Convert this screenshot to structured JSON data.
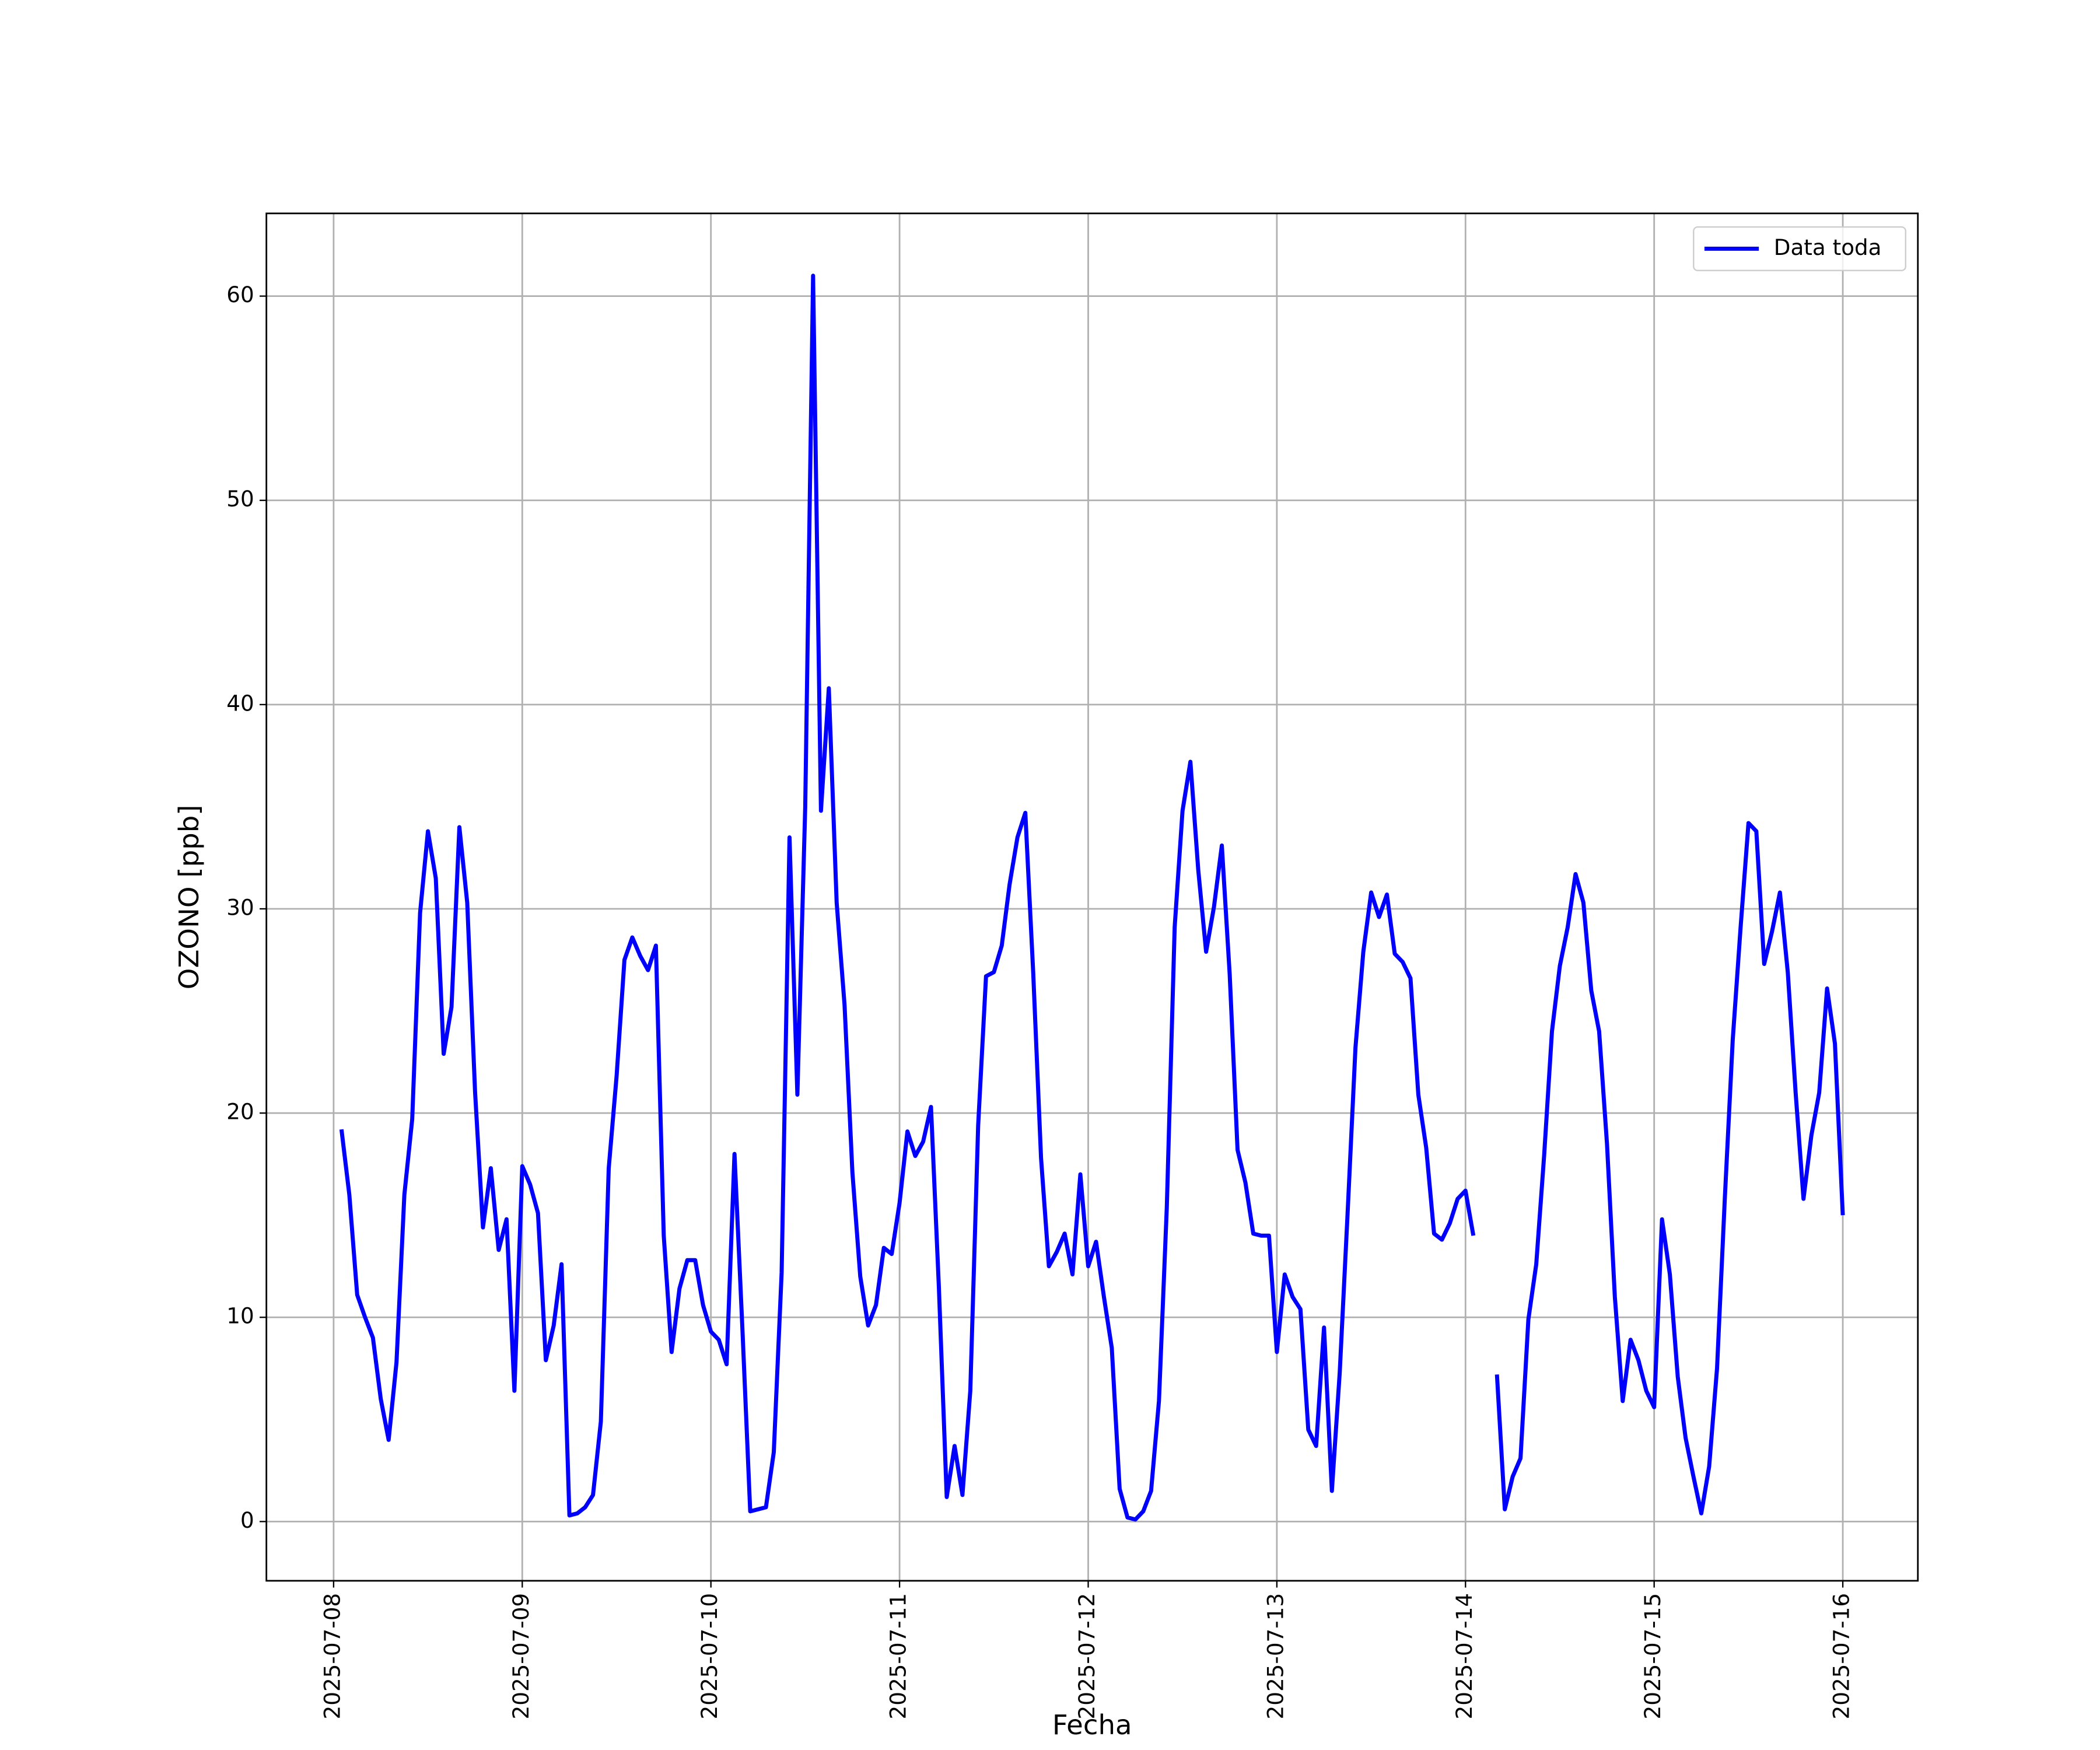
{
  "chart_data": {
    "type": "line",
    "xlabel": "Fecha",
    "ylabel": "OZONO [ppb]",
    "x": [
      "2025-07-08 01:00",
      "2025-07-08 02:00",
      "2025-07-08 03:00",
      "2025-07-08 04:00",
      "2025-07-08 05:00",
      "2025-07-08 06:00",
      "2025-07-08 07:00",
      "2025-07-08 08:00",
      "2025-07-08 09:00",
      "2025-07-08 10:00",
      "2025-07-08 11:00",
      "2025-07-08 12:00",
      "2025-07-08 13:00",
      "2025-07-08 14:00",
      "2025-07-08 15:00",
      "2025-07-08 16:00",
      "2025-07-08 17:00",
      "2025-07-08 18:00",
      "2025-07-08 19:00",
      "2025-07-08 20:00",
      "2025-07-08 21:00",
      "2025-07-08 22:00",
      "2025-07-08 23:00",
      "2025-07-09 00:00",
      "2025-07-09 01:00",
      "2025-07-09 02:00",
      "2025-07-09 03:00",
      "2025-07-09 04:00",
      "2025-07-09 05:00",
      "2025-07-09 06:00",
      "2025-07-09 07:00",
      "2025-07-09 08:00",
      "2025-07-09 09:00",
      "2025-07-09 10:00",
      "2025-07-09 11:00",
      "2025-07-09 12:00",
      "2025-07-09 13:00",
      "2025-07-09 14:00",
      "2025-07-09 15:00",
      "2025-07-09 16:00",
      "2025-07-09 17:00",
      "2025-07-09 18:00",
      "2025-07-09 19:00",
      "2025-07-09 20:00",
      "2025-07-09 21:00",
      "2025-07-09 22:00",
      "2025-07-09 23:00",
      "2025-07-10 00:00",
      "2025-07-10 01:00",
      "2025-07-10 02:00",
      "2025-07-10 03:00",
      "2025-07-10 04:00",
      "2025-07-10 05:00",
      "2025-07-10 06:00",
      "2025-07-10 07:00",
      "2025-07-10 08:00",
      "2025-07-10 09:00",
      "2025-07-10 10:00",
      "2025-07-10 11:00",
      "2025-07-10 12:00",
      "2025-07-10 13:00",
      "2025-07-10 14:00",
      "2025-07-10 15:00",
      "2025-07-10 16:00",
      "2025-07-10 17:00",
      "2025-07-10 18:00",
      "2025-07-10 19:00",
      "2025-07-10 20:00",
      "2025-07-10 21:00",
      "2025-07-10 22:00",
      "2025-07-10 23:00",
      "2025-07-11 00:00",
      "2025-07-11 01:00",
      "2025-07-11 02:00",
      "2025-07-11 03:00",
      "2025-07-11 04:00",
      "2025-07-11 05:00",
      "2025-07-11 06:00",
      "2025-07-11 07:00",
      "2025-07-11 08:00",
      "2025-07-11 09:00",
      "2025-07-11 10:00",
      "2025-07-11 11:00",
      "2025-07-11 12:00",
      "2025-07-11 13:00",
      "2025-07-11 14:00",
      "2025-07-11 15:00",
      "2025-07-11 16:00",
      "2025-07-11 17:00",
      "2025-07-11 18:00",
      "2025-07-11 19:00",
      "2025-07-11 20:00",
      "2025-07-11 21:00",
      "2025-07-11 22:00",
      "2025-07-11 23:00",
      "2025-07-12 00:00",
      "2025-07-12 01:00",
      "2025-07-12 02:00",
      "2025-07-12 03:00",
      "2025-07-12 04:00",
      "2025-07-12 05:00",
      "2025-07-12 06:00",
      "2025-07-12 07:00",
      "2025-07-12 08:00",
      "2025-07-12 09:00",
      "2025-07-12 10:00",
      "2025-07-12 11:00",
      "2025-07-12 12:00",
      "2025-07-12 13:00",
      "2025-07-12 14:00",
      "2025-07-12 15:00",
      "2025-07-12 16:00",
      "2025-07-12 17:00",
      "2025-07-12 18:00",
      "2025-07-12 19:00",
      "2025-07-12 20:00",
      "2025-07-12 21:00",
      "2025-07-12 22:00",
      "2025-07-12 23:00",
      "2025-07-13 00:00",
      "2025-07-13 01:00",
      "2025-07-13 02:00",
      "2025-07-13 03:00",
      "2025-07-13 04:00",
      "2025-07-13 05:00",
      "2025-07-13 06:00",
      "2025-07-13 07:00",
      "2025-07-13 08:00",
      "2025-07-13 09:00",
      "2025-07-13 10:00",
      "2025-07-13 11:00",
      "2025-07-13 12:00",
      "2025-07-13 13:00",
      "2025-07-13 14:00",
      "2025-07-13 15:00",
      "2025-07-13 16:00",
      "2025-07-13 17:00",
      "2025-07-13 18:00",
      "2025-07-13 19:00",
      "2025-07-13 20:00",
      "2025-07-13 21:00",
      "2025-07-13 22:00",
      "2025-07-13 23:00",
      "2025-07-14 00:00",
      "2025-07-14 01:00",
      "2025-07-14 02:00",
      "2025-07-14 03:00",
      "2025-07-14 04:00",
      "2025-07-14 05:00",
      "2025-07-14 06:00",
      "2025-07-14 07:00",
      "2025-07-14 08:00",
      "2025-07-14 09:00",
      "2025-07-14 10:00",
      "2025-07-14 11:00",
      "2025-07-14 12:00",
      "2025-07-14 13:00",
      "2025-07-14 14:00",
      "2025-07-14 15:00",
      "2025-07-14 16:00",
      "2025-07-14 17:00",
      "2025-07-14 18:00",
      "2025-07-14 19:00",
      "2025-07-14 20:00",
      "2025-07-14 21:00",
      "2025-07-14 22:00",
      "2025-07-14 23:00",
      "2025-07-15 00:00",
      "2025-07-15 01:00",
      "2025-07-15 02:00",
      "2025-07-15 03:00",
      "2025-07-15 04:00",
      "2025-07-15 05:00",
      "2025-07-15 06:00",
      "2025-07-15 07:00",
      "2025-07-15 08:00",
      "2025-07-15 09:00",
      "2025-07-15 10:00",
      "2025-07-15 11:00",
      "2025-07-15 12:00",
      "2025-07-15 13:00",
      "2025-07-15 14:00",
      "2025-07-15 15:00",
      "2025-07-15 16:00",
      "2025-07-15 17:00",
      "2025-07-15 18:00",
      "2025-07-15 19:00",
      "2025-07-15 20:00",
      "2025-07-15 21:00",
      "2025-07-15 22:00",
      "2025-07-15 23:00",
      "2025-07-16 00:00"
    ],
    "series": [
      {
        "name": "Data toda",
        "color": "#0000ff",
        "values": [
          19.2,
          16,
          11.1,
          10,
          9,
          6,
          4,
          7.8,
          16,
          19.7,
          29.8,
          33.8,
          31.5,
          22.9,
          25.2,
          34,
          30.3,
          21,
          14.4,
          17.3,
          13.3,
          14.8,
          6.4,
          17.4,
          16.5,
          15.1,
          7.9,
          9.6,
          12.6,
          0.3,
          0.4,
          0.7,
          1.3,
          4.9,
          17.3,
          21.8,
          27.5,
          28.6,
          27.7,
          27,
          28.2,
          14,
          8.3,
          11.4,
          12.8,
          12.8,
          10.6,
          9.3,
          8.9,
          7.7,
          18,
          9.5,
          0.5,
          0.6,
          0.7,
          3.4,
          12.2,
          33.5,
          20.9,
          35,
          61,
          34.8,
          40.8,
          30.3,
          25.3,
          17.1,
          12,
          9.6,
          10.6,
          13.4,
          13.1,
          15.6,
          19.1,
          17.9,
          18.6,
          20.3,
          11.5,
          1.2,
          3.7,
          1.3,
          6.4,
          19.4,
          26.7,
          26.9,
          28.2,
          31.2,
          33.5,
          34.7,
          26.9,
          17.8,
          12.5,
          13.2,
          14.1,
          12.1,
          17,
          12.5,
          13.7,
          11,
          8.5,
          1.6,
          0.2,
          0.1,
          0.5,
          1.5,
          5.9,
          15.4,
          29.1,
          34.8,
          37.2,
          31.9,
          27.9,
          30.1,
          33.1,
          26.8,
          18.2,
          16.6,
          14.1,
          14,
          14,
          8.3,
          12.1,
          11,
          10.4,
          4.5,
          3.7,
          9.5,
          1.5,
          7.3,
          15.1,
          23.2,
          27.9,
          30.8,
          29.6,
          30.7,
          27.8,
          27.4,
          26.6,
          20.9,
          18.3,
          14.1,
          13.8,
          14.6,
          15.8,
          16.2,
          14,
          null,
          null,
          7.2,
          0.6,
          2.2,
          3.1,
          9.9,
          12.6,
          17.9,
          24,
          27.2,
          29.1,
          31.7,
          30.3,
          26,
          24,
          18.5,
          11,
          5.9,
          8.9,
          7.9,
          6.4,
          5.6,
          14.8,
          12.1,
          7.1,
          4.1,
          2.2,
          0.4,
          2.7,
          7.5,
          15.9,
          23.6,
          29.1,
          34.2,
          33.8,
          27.3,
          28.9,
          30.8,
          26.9,
          21,
          15.8,
          18.9,
          21,
          26.1,
          23.4,
          15
        ]
      }
    ],
    "xlim": [
      "2025-07-07 15:27",
      "2025-07-16 09:33"
    ],
    "xticks": [
      "2025-07-08",
      "2025-07-09",
      "2025-07-10",
      "2025-07-11",
      "2025-07-12",
      "2025-07-13",
      "2025-07-14",
      "2025-07-15",
      "2025-07-16"
    ],
    "ylim": [
      -2.9,
      64.05
    ],
    "yticks": [
      0,
      10,
      20,
      30,
      40,
      50,
      60
    ],
    "grid": true,
    "legend": "upper right"
  }
}
